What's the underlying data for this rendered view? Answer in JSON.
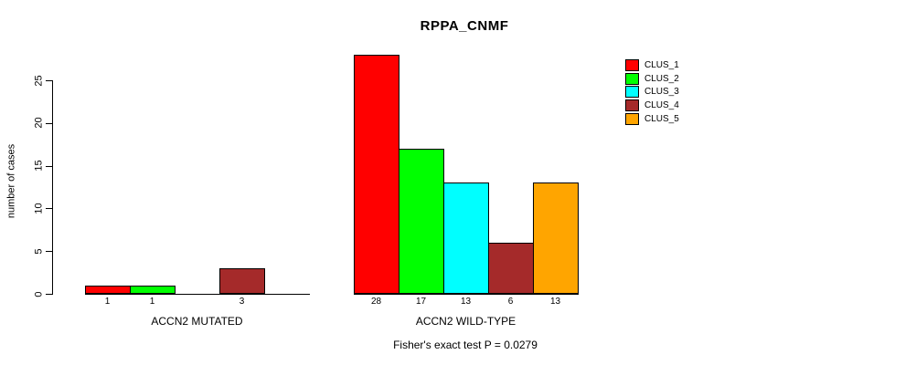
{
  "title": "RPPA_CNMF",
  "footer": "Fisher's exact test P = 0.0279",
  "y_axis": {
    "label": "number of cases",
    "ticks": [
      0,
      5,
      10,
      15,
      20,
      25
    ]
  },
  "legend": {
    "entries": [
      {
        "label": "CLUS_1",
        "color": "#FF0000"
      },
      {
        "label": "CLUS_2",
        "color": "#00FF00"
      },
      {
        "label": "CLUS_3",
        "color": "#00FFFF"
      },
      {
        "label": "CLUS_4",
        "color": "#A52A2A"
      },
      {
        "label": "CLUS_5",
        "color": "#FFA500"
      }
    ]
  },
  "chart_data": {
    "type": "bar",
    "title": "RPPA_CNMF",
    "ylabel": "number of cases",
    "ylim": [
      0,
      28
    ],
    "yticks": [
      0,
      5,
      10,
      15,
      20,
      25
    ],
    "grid": false,
    "legend_position": "right",
    "series": [
      "CLUS_1",
      "CLUS_2",
      "CLUS_3",
      "CLUS_4",
      "CLUS_5"
    ],
    "series_colors": [
      "#FF0000",
      "#00FF00",
      "#00FFFF",
      "#A52A2A",
      "#FFA500"
    ],
    "groups": [
      {
        "label": "ACCN2 MUTATED",
        "values": [
          1,
          1,
          0,
          3,
          0
        ]
      },
      {
        "label": "ACCN2 WILD-TYPE",
        "values": [
          28,
          17,
          13,
          6,
          13
        ]
      }
    ],
    "annotation": "Fisher's exact test P = 0.0279",
    "bar_outline_color": "#000000",
    "background_color": "#FFFFFF"
  }
}
